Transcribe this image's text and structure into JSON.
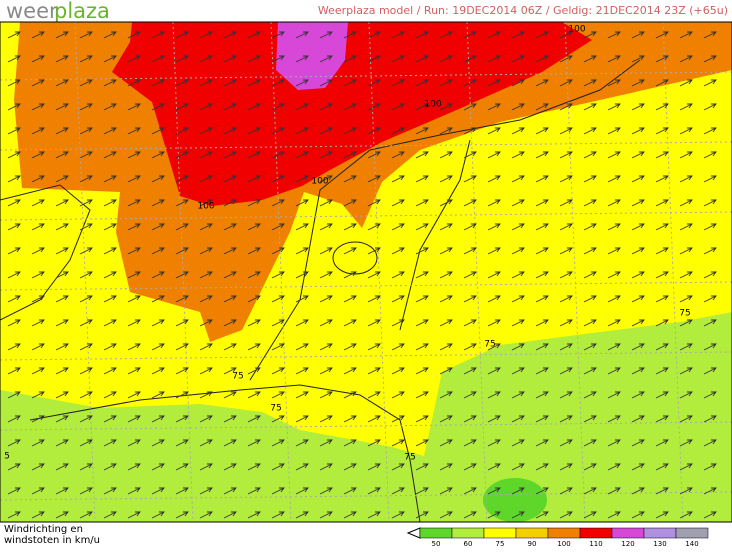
{
  "header": {
    "logo_weer": "weer",
    "logo_plaza": "plaza",
    "run_info": "Weerplaza model / Run: 19DEC2014 06Z / Geldig: 21DEC2014 23Z (+65u)"
  },
  "contour_labels": [
    "100",
    "100",
    "100",
    "100",
    "75",
    "75",
    "75",
    "75",
    "75",
    "5"
  ],
  "footer": {
    "caption_line1": "Windrichting en",
    "caption_line2": "windstoten in km/u"
  },
  "legend": {
    "labels": [
      "50",
      "60",
      "75",
      "90",
      "100",
      "110",
      "120",
      "130",
      "140"
    ],
    "colors": [
      "#5fd62a",
      "#b2ec3c",
      "#ffff00",
      "#f2d000",
      "#f08000",
      "#f00000",
      "#d848d8",
      "#b090e0",
      "#a0a0b0"
    ]
  }
}
